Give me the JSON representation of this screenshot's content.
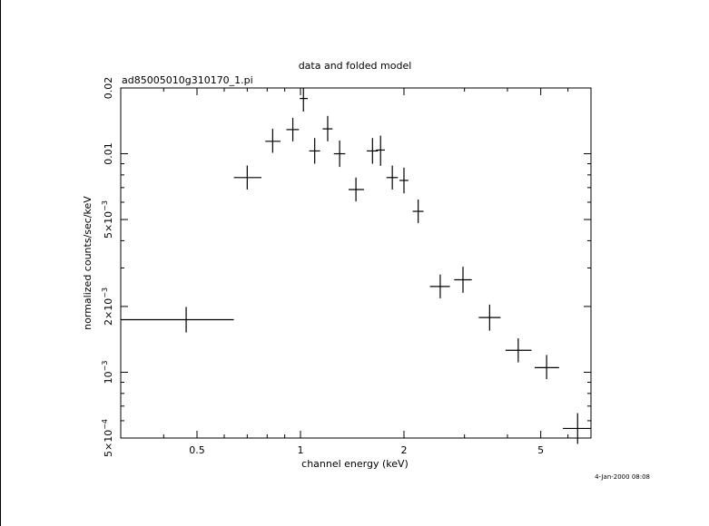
{
  "chart_data": {
    "type": "scatter",
    "title": "data and folded model",
    "subtitle": "ad85005010g310170_1.pi",
    "xlabel": "channel energy (keV)",
    "ylabel": "normalized counts/sec/keV",
    "timestamp": "4-Jan-2000 08:08",
    "x_scale": "log",
    "y_scale": "log",
    "xlim": [
      0.3,
      7.0
    ],
    "ylim": [
      0.0005,
      0.02
    ],
    "x_ticks": [
      {
        "value": 0.5,
        "label": "0.5"
      },
      {
        "value": 1,
        "label": "1"
      },
      {
        "value": 2,
        "label": "2"
      },
      {
        "value": 5,
        "label": "5"
      }
    ],
    "y_ticks": [
      {
        "value": 0.02,
        "base": "0.02",
        "exp": ""
      },
      {
        "value": 0.01,
        "base": "0.01",
        "exp": ""
      },
      {
        "value": 0.005,
        "base": "5×10",
        "exp": "−3"
      },
      {
        "value": 0.002,
        "base": "2×10",
        "exp": "−3"
      },
      {
        "value": 0.001,
        "base": "10",
        "exp": "−3"
      },
      {
        "value": 0.0005,
        "base": "5×10",
        "exp": "−4"
      }
    ],
    "grid": false,
    "legend": "none",
    "series": [
      {
        "points": [
          {
            "x": 0.465,
            "xlo": 0.3,
            "xhi": 0.64,
            "y": 0.00174,
            "ylo": 0.00152,
            "yhi": 0.00199
          },
          {
            "x": 0.7,
            "xlo": 0.64,
            "xhi": 0.77,
            "y": 0.00778,
            "ylo": 0.00686,
            "yhi": 0.00883
          },
          {
            "x": 0.83,
            "xlo": 0.79,
            "xhi": 0.875,
            "y": 0.0114,
            "ylo": 0.0101,
            "yhi": 0.013
          },
          {
            "x": 0.95,
            "xlo": 0.91,
            "xhi": 0.99,
            "y": 0.0129,
            "ylo": 0.0114,
            "yhi": 0.0146
          },
          {
            "x": 1.02,
            "xlo": 0.995,
            "xhi": 1.05,
            "y": 0.0179,
            "ylo": 0.0156,
            "yhi": 0.02
          },
          {
            "x": 1.1,
            "xlo": 1.06,
            "xhi": 1.14,
            "y": 0.0103,
            "ylo": 0.009,
            "yhi": 0.0118
          },
          {
            "x": 1.2,
            "xlo": 1.16,
            "xhi": 1.24,
            "y": 0.013,
            "ylo": 0.0114,
            "yhi": 0.0149
          },
          {
            "x": 1.3,
            "xlo": 1.25,
            "xhi": 1.35,
            "y": 0.01,
            "ylo": 0.0087,
            "yhi": 0.0115
          },
          {
            "x": 1.45,
            "xlo": 1.38,
            "xhi": 1.53,
            "y": 0.00686,
            "ylo": 0.00605,
            "yhi": 0.00778
          },
          {
            "x": 1.62,
            "xlo": 1.56,
            "xhi": 1.68,
            "y": 0.0103,
            "ylo": 0.009,
            "yhi": 0.0118
          },
          {
            "x": 1.71,
            "xlo": 1.66,
            "xhi": 1.76,
            "y": 0.0104,
            "ylo": 0.0088,
            "yhi": 0.0121
          },
          {
            "x": 1.85,
            "xlo": 1.78,
            "xhi": 1.92,
            "y": 0.00778,
            "ylo": 0.00686,
            "yhi": 0.00883
          },
          {
            "x": 2.0,
            "xlo": 1.94,
            "xhi": 2.06,
            "y": 0.00755,
            "ylo": 0.00659,
            "yhi": 0.00864
          },
          {
            "x": 2.2,
            "xlo": 2.12,
            "xhi": 2.28,
            "y": 0.00545,
            "ylo": 0.00482,
            "yhi": 0.00617
          },
          {
            "x": 2.55,
            "xlo": 2.38,
            "xhi": 2.72,
            "y": 0.00247,
            "ylo": 0.00218,
            "yhi": 0.0028
          },
          {
            "x": 2.97,
            "xlo": 2.8,
            "xhi": 3.15,
            "y": 0.00265,
            "ylo": 0.00231,
            "yhi": 0.00304
          },
          {
            "x": 3.55,
            "xlo": 3.3,
            "xhi": 3.82,
            "y": 0.00178,
            "ylo": 0.00155,
            "yhi": 0.00204
          },
          {
            "x": 4.3,
            "xlo": 3.95,
            "xhi": 4.7,
            "y": 0.00126,
            "ylo": 0.00111,
            "yhi": 0.00143
          },
          {
            "x": 5.2,
            "xlo": 4.8,
            "xhi": 5.65,
            "y": 0.00105,
            "ylo": 0.00093,
            "yhi": 0.0012
          },
          {
            "x": 6.4,
            "xlo": 5.8,
            "xhi": 7.0,
            "y": 0.000553,
            "ylo": 0.00047,
            "yhi": 0.00065
          }
        ]
      }
    ]
  }
}
